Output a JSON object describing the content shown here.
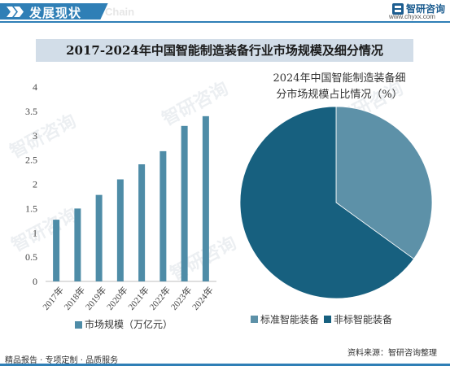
{
  "header": {
    "title": "发展现状",
    "subtitle": "Chain",
    "brand_name": "智研咨询",
    "brand_url": "www.chyxx.com"
  },
  "main_title": "2017-2024年中国智能制造装备行业市场规模及细分情况",
  "chart_data": [
    {
      "type": "bar",
      "categories": [
        "2017年",
        "2018年",
        "2019年",
        "2020年",
        "2021年",
        "2022年",
        "2023年",
        "2024年"
      ],
      "series": [
        {
          "name": "市场规模（万亿元）",
          "values": [
            1.27,
            1.5,
            1.78,
            2.1,
            2.41,
            2.68,
            3.2,
            3.4
          ]
        }
      ],
      "ylim": [
        0,
        4
      ],
      "yticks": [
        "0",
        "0.5",
        "1",
        "1.5",
        "2",
        "2.5",
        "3",
        "3.5",
        "4"
      ],
      "colors": {
        "bar": "#4e8ca7"
      },
      "legend": "bottom"
    },
    {
      "type": "pie",
      "title_lines": [
        "2024年中国智能制造装备细",
        "分市场规模占比情况（%）"
      ],
      "labels": [
        "标准智能装备",
        "非标智能装备"
      ],
      "values": [
        35,
        65
      ],
      "colors": [
        "#5d91a8",
        "#17607f"
      ],
      "legend": "bottom"
    }
  ],
  "watermark": "智研咨询",
  "footer": {
    "left": "精品报告 · 专项定制 · 品质服务",
    "right": "资料来源：智研咨询整理"
  },
  "colors": {
    "header_blue": "#2f7fb6",
    "title_band": "#d2dde8"
  }
}
